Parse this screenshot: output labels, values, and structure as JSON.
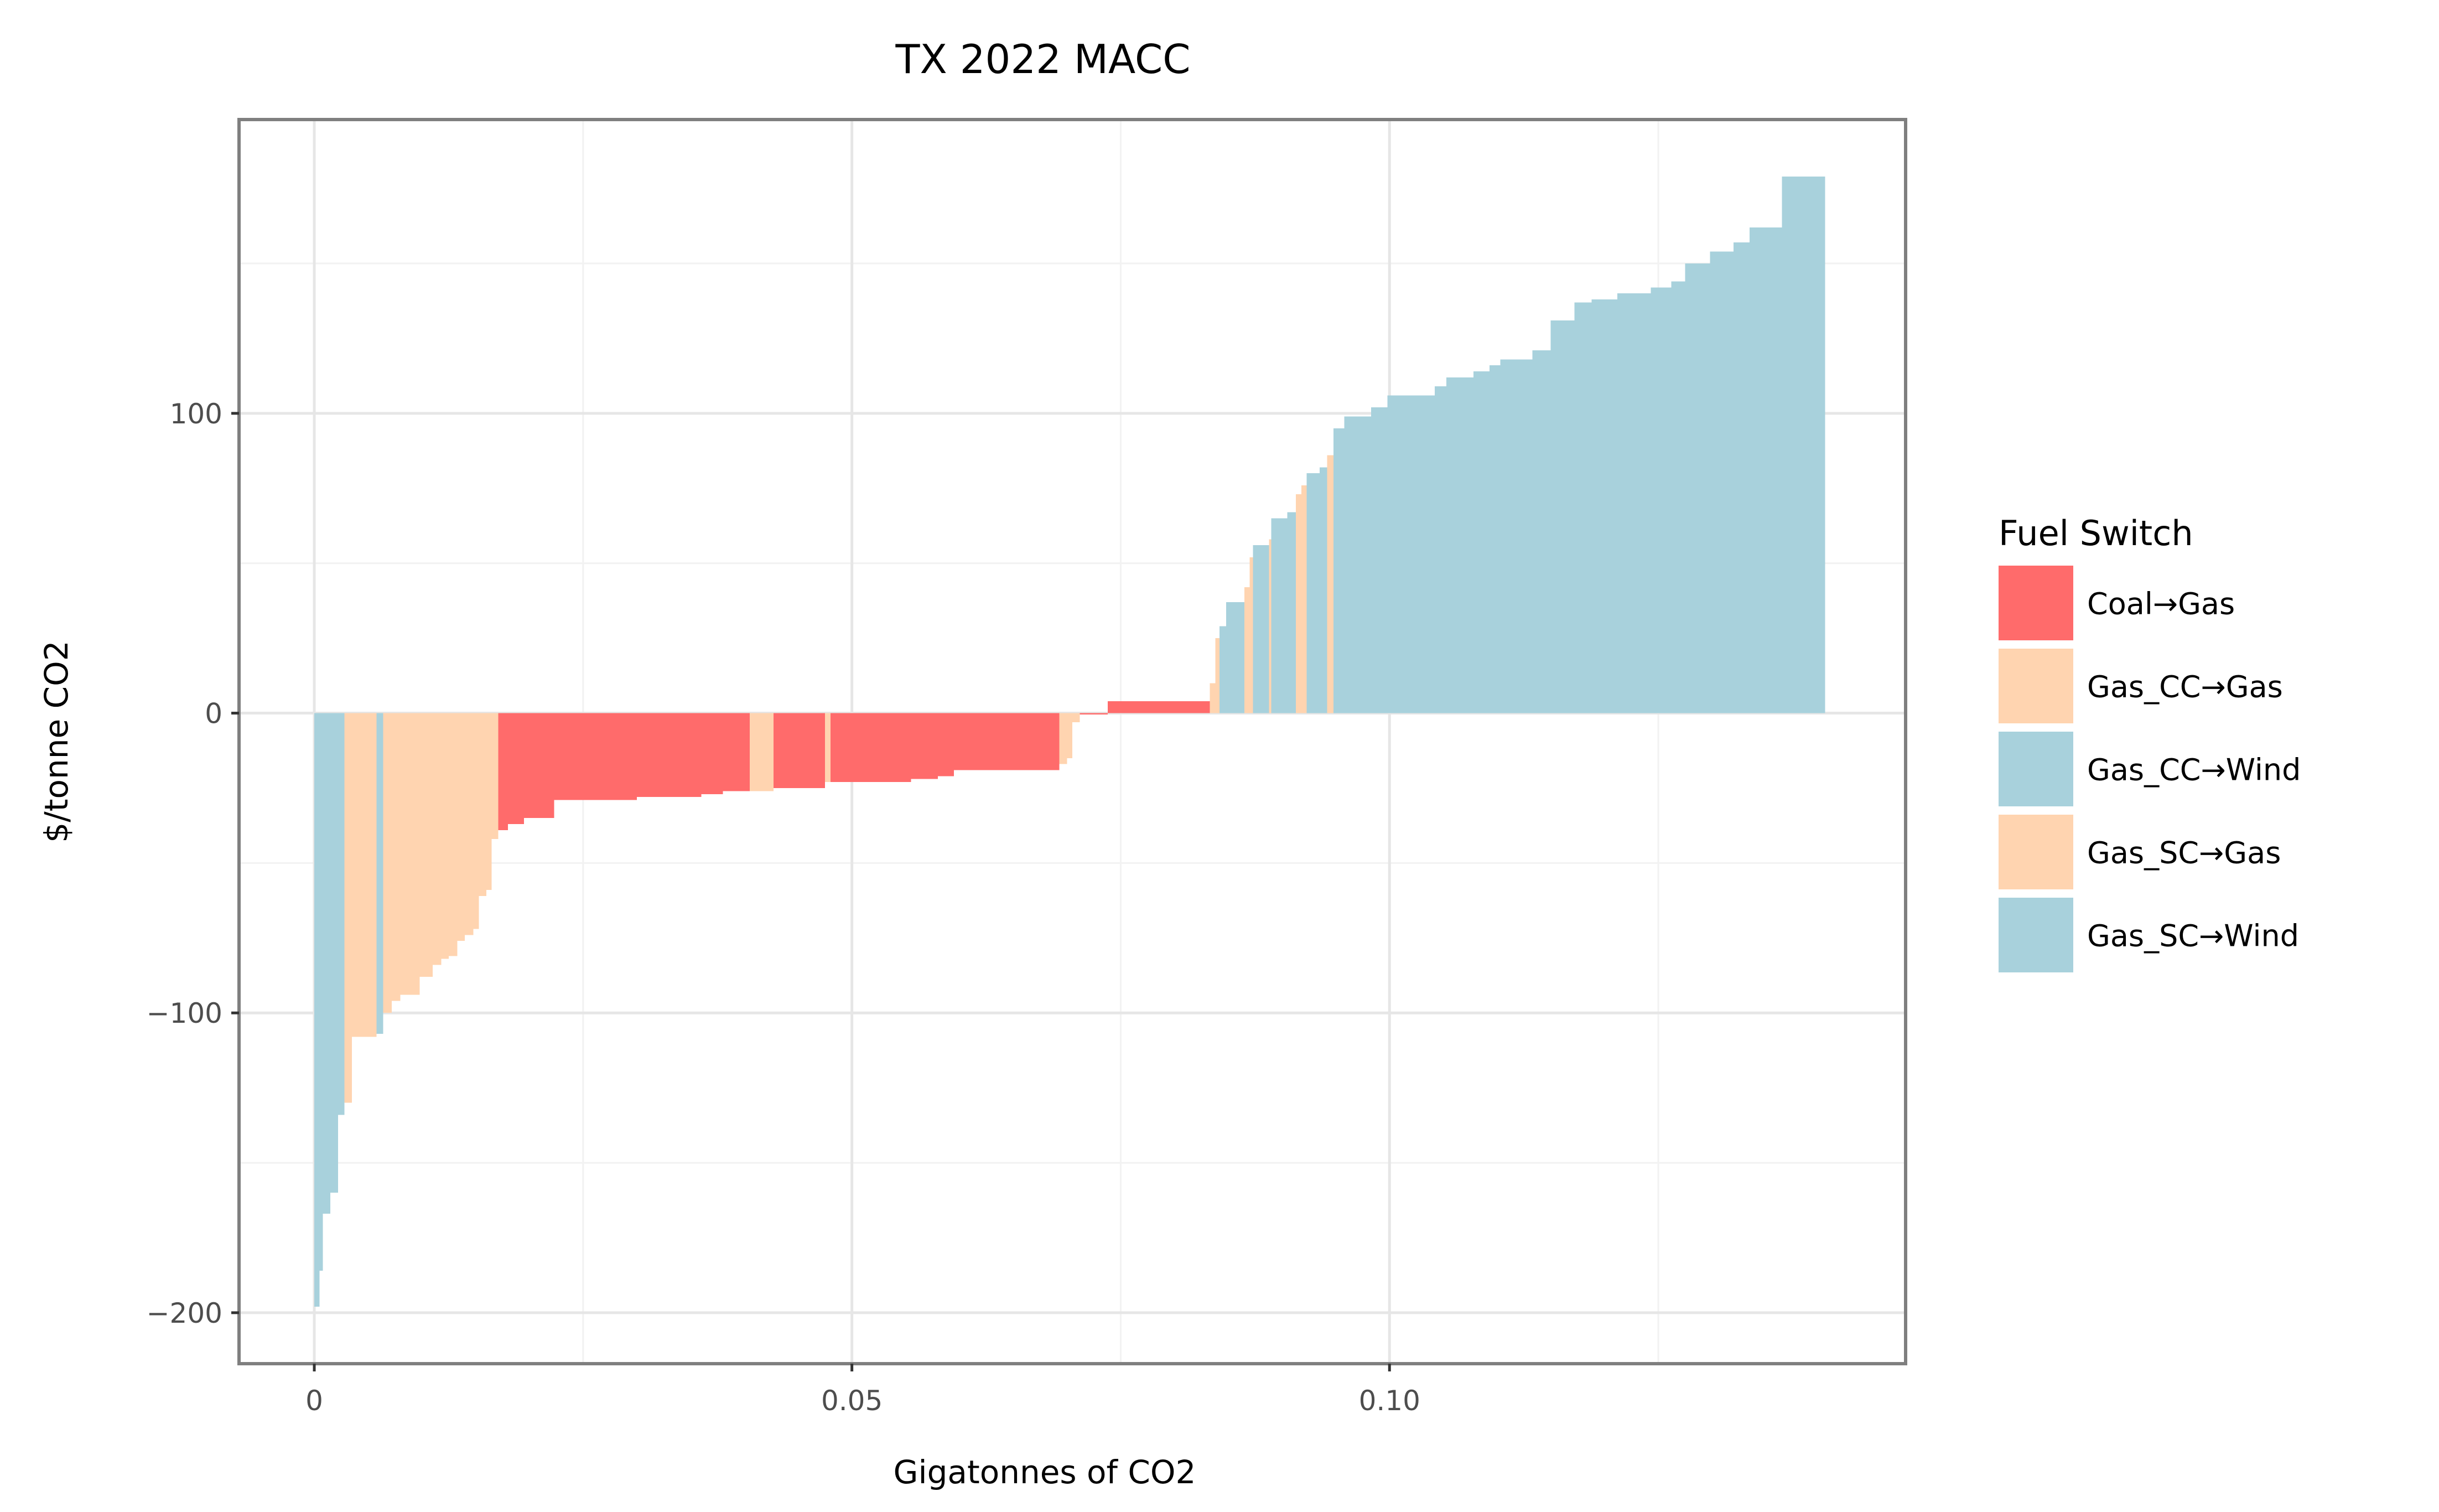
{
  "chart_data": {
    "type": "bar",
    "title": "TX 2022 MACC",
    "xlabel": "Gigatonnes of CO2",
    "ylabel": "$/tonne CO2",
    "xlim": [
      -0.007,
      0.148
    ],
    "ylim": [
      -217,
      198
    ],
    "x_ticks": [
      0,
      0.05,
      0.1
    ],
    "x_tick_labels": [
      "0",
      "0.05",
      "0.10"
    ],
    "y_ticks": [
      -200,
      -100,
      0,
      100
    ],
    "y_tick_labels": [
      "−200",
      "−100",
      "0",
      "100"
    ],
    "grid": true,
    "legend": {
      "title": "Fuel Switch",
      "position": "right",
      "entries": [
        {
          "name": "Coal→Gas",
          "color": "#ff6b6b"
        },
        {
          "name": "Gas_CC→Gas",
          "color": "#ffd4b0"
        },
        {
          "name": "Gas_CC→Wind",
          "color": "#a8d1dc"
        },
        {
          "name": "Gas_SC→Gas",
          "color": "#ffd4b0"
        },
        {
          "name": "Gas_SC→Wind",
          "color": "#a8d1dc"
        }
      ]
    },
    "bars": [
      {
        "x0": 0.0,
        "x1": 0.0005,
        "y": -198,
        "group": "Gas_CC→Wind"
      },
      {
        "x0": 0.0005,
        "x1": 0.0008,
        "y": -186,
        "group": "Gas_CC→Wind"
      },
      {
        "x0": 0.0008,
        "x1": 0.0015,
        "y": -167,
        "group": "Gas_CC→Wind"
      },
      {
        "x0": 0.0015,
        "x1": 0.0022,
        "y": -160,
        "group": "Gas_CC→Wind"
      },
      {
        "x0": 0.0022,
        "x1": 0.0028,
        "y": -134,
        "group": "Gas_CC→Wind"
      },
      {
        "x0": 0.0028,
        "x1": 0.0035,
        "y": -130,
        "group": "Gas_SC→Gas"
      },
      {
        "x0": 0.0035,
        "x1": 0.0058,
        "y": -108,
        "group": "Gas_SC→Gas"
      },
      {
        "x0": 0.0058,
        "x1": 0.0064,
        "y": -107,
        "group": "Gas_CC→Wind"
      },
      {
        "x0": 0.0064,
        "x1": 0.0072,
        "y": -100,
        "group": "Gas_SC→Gas"
      },
      {
        "x0": 0.0072,
        "x1": 0.008,
        "y": -96,
        "group": "Gas_SC→Gas"
      },
      {
        "x0": 0.008,
        "x1": 0.0098,
        "y": -94,
        "group": "Gas_SC→Gas"
      },
      {
        "x0": 0.0098,
        "x1": 0.011,
        "y": -88,
        "group": "Gas_SC→Gas"
      },
      {
        "x0": 0.011,
        "x1": 0.0118,
        "y": -84,
        "group": "Gas_SC→Gas"
      },
      {
        "x0": 0.0118,
        "x1": 0.0125,
        "y": -82,
        "group": "Gas_SC→Gas"
      },
      {
        "x0": 0.0125,
        "x1": 0.0133,
        "y": -81,
        "group": "Gas_SC→Gas"
      },
      {
        "x0": 0.0133,
        "x1": 0.014,
        "y": -76,
        "group": "Gas_SC→Gas"
      },
      {
        "x0": 0.014,
        "x1": 0.0148,
        "y": -74,
        "group": "Gas_SC→Gas"
      },
      {
        "x0": 0.0148,
        "x1": 0.0153,
        "y": -72,
        "group": "Gas_SC→Gas"
      },
      {
        "x0": 0.0153,
        "x1": 0.016,
        "y": -61,
        "group": "Gas_SC→Gas"
      },
      {
        "x0": 0.016,
        "x1": 0.0165,
        "y": -59,
        "group": "Gas_SC→Gas"
      },
      {
        "x0": 0.0165,
        "x1": 0.0171,
        "y": -42,
        "group": "Gas_SC→Gas"
      },
      {
        "x0": 0.0171,
        "x1": 0.018,
        "y": -39,
        "group": "Coal→Gas"
      },
      {
        "x0": 0.018,
        "x1": 0.0195,
        "y": -37,
        "group": "Coal→Gas"
      },
      {
        "x0": 0.0195,
        "x1": 0.0223,
        "y": -35,
        "group": "Coal→Gas"
      },
      {
        "x0": 0.0223,
        "x1": 0.03,
        "y": -29,
        "group": "Coal→Gas"
      },
      {
        "x0": 0.03,
        "x1": 0.036,
        "y": -28,
        "group": "Coal→Gas"
      },
      {
        "x0": 0.036,
        "x1": 0.038,
        "y": -27,
        "group": "Coal→Gas"
      },
      {
        "x0": 0.038,
        "x1": 0.0405,
        "y": -26,
        "group": "Coal→Gas"
      },
      {
        "x0": 0.0405,
        "x1": 0.0427,
        "y": -26,
        "group": "Gas_SC→Gas"
      },
      {
        "x0": 0.0427,
        "x1": 0.0475,
        "y": -25,
        "group": "Coal→Gas"
      },
      {
        "x0": 0.0475,
        "x1": 0.048,
        "y": -23,
        "group": "Gas_SC→Gas"
      },
      {
        "x0": 0.048,
        "x1": 0.0555,
        "y": -23,
        "group": "Coal→Gas"
      },
      {
        "x0": 0.0555,
        "x1": 0.058,
        "y": -22,
        "group": "Coal→Gas"
      },
      {
        "x0": 0.058,
        "x1": 0.0595,
        "y": -21,
        "group": "Coal→Gas"
      },
      {
        "x0": 0.0595,
        "x1": 0.0693,
        "y": -19,
        "group": "Coal→Gas"
      },
      {
        "x0": 0.0693,
        "x1": 0.07,
        "y": -17,
        "group": "Gas_SC→Gas"
      },
      {
        "x0": 0.07,
        "x1": 0.0705,
        "y": -15,
        "group": "Gas_SC→Gas"
      },
      {
        "x0": 0.0705,
        "x1": 0.0712,
        "y": -3,
        "group": "Gas_SC→Gas"
      },
      {
        "x0": 0.0712,
        "x1": 0.0738,
        "y": -0.5,
        "group": "Coal→Gas"
      },
      {
        "x0": 0.0738,
        "x1": 0.0833,
        "y": 4,
        "group": "Coal→Gas"
      },
      {
        "x0": 0.0833,
        "x1": 0.0838,
        "y": 10,
        "group": "Gas_SC→Gas"
      },
      {
        "x0": 0.0838,
        "x1": 0.0842,
        "y": 25,
        "group": "Gas_SC→Gas"
      },
      {
        "x0": 0.0842,
        "x1": 0.0848,
        "y": 29,
        "group": "Gas_CC→Wind"
      },
      {
        "x0": 0.0848,
        "x1": 0.0865,
        "y": 37,
        "group": "Gas_CC→Wind"
      },
      {
        "x0": 0.0865,
        "x1": 0.087,
        "y": 42,
        "group": "Gas_SC→Gas"
      },
      {
        "x0": 0.087,
        "x1": 0.0873,
        "y": 52,
        "group": "Gas_SC→Gas"
      },
      {
        "x0": 0.0873,
        "x1": 0.0888,
        "y": 56,
        "group": "Gas_CC→Wind"
      },
      {
        "x0": 0.0888,
        "x1": 0.089,
        "y": 58,
        "group": "Gas_SC→Gas"
      },
      {
        "x0": 0.089,
        "x1": 0.0905,
        "y": 65,
        "group": "Gas_CC→Wind"
      },
      {
        "x0": 0.0905,
        "x1": 0.0913,
        "y": 67,
        "group": "Gas_CC→Wind"
      },
      {
        "x0": 0.0913,
        "x1": 0.0918,
        "y": 73,
        "group": "Gas_SC→Gas"
      },
      {
        "x0": 0.0918,
        "x1": 0.0923,
        "y": 76,
        "group": "Gas_SC→Gas"
      },
      {
        "x0": 0.0923,
        "x1": 0.0935,
        "y": 80,
        "group": "Gas_CC→Wind"
      },
      {
        "x0": 0.0935,
        "x1": 0.0942,
        "y": 82,
        "group": "Gas_CC→Wind"
      },
      {
        "x0": 0.0942,
        "x1": 0.0948,
        "y": 86,
        "group": "Gas_SC→Gas"
      },
      {
        "x0": 0.0948,
        "x1": 0.0958,
        "y": 95,
        "group": "Gas_CC→Wind"
      },
      {
        "x0": 0.0958,
        "x1": 0.0983,
        "y": 99,
        "group": "Gas_CC→Wind"
      },
      {
        "x0": 0.0983,
        "x1": 0.0998,
        "y": 102,
        "group": "Gas_CC→Wind"
      },
      {
        "x0": 0.0998,
        "x1": 0.1042,
        "y": 106,
        "group": "Gas_CC→Wind"
      },
      {
        "x0": 0.1042,
        "x1": 0.1053,
        "y": 109,
        "group": "Gas_CC→Wind"
      },
      {
        "x0": 0.1053,
        "x1": 0.1078,
        "y": 112,
        "group": "Gas_CC→Wind"
      },
      {
        "x0": 0.1078,
        "x1": 0.1093,
        "y": 114,
        "group": "Gas_CC→Wind"
      },
      {
        "x0": 0.1093,
        "x1": 0.1103,
        "y": 116,
        "group": "Gas_CC→Wind"
      },
      {
        "x0": 0.1103,
        "x1": 0.1133,
        "y": 118,
        "group": "Gas_CC→Wind"
      },
      {
        "x0": 0.1133,
        "x1": 0.115,
        "y": 121,
        "group": "Gas_CC→Wind"
      },
      {
        "x0": 0.115,
        "x1": 0.1172,
        "y": 131,
        "group": "Gas_CC→Wind"
      },
      {
        "x0": 0.1172,
        "x1": 0.1188,
        "y": 137,
        "group": "Gas_CC→Wind"
      },
      {
        "x0": 0.1188,
        "x1": 0.1212,
        "y": 138,
        "group": "Gas_CC→Wind"
      },
      {
        "x0": 0.1212,
        "x1": 0.1243,
        "y": 140,
        "group": "Gas_CC→Wind"
      },
      {
        "x0": 0.1243,
        "x1": 0.1262,
        "y": 142,
        "group": "Gas_CC→Wind"
      },
      {
        "x0": 0.1262,
        "x1": 0.1275,
        "y": 144,
        "group": "Gas_CC→Wind"
      },
      {
        "x0": 0.1275,
        "x1": 0.1298,
        "y": 150,
        "group": "Gas_CC→Wind"
      },
      {
        "x0": 0.1298,
        "x1": 0.132,
        "y": 154,
        "group": "Gas_CC→Wind"
      },
      {
        "x0": 0.132,
        "x1": 0.1335,
        "y": 157,
        "group": "Gas_CC→Wind"
      },
      {
        "x0": 0.1335,
        "x1": 0.1365,
        "y": 162,
        "group": "Gas_CC→Wind"
      },
      {
        "x0": 0.1365,
        "x1": 0.1405,
        "y": 179,
        "group": "Gas_CC→Wind"
      }
    ]
  }
}
